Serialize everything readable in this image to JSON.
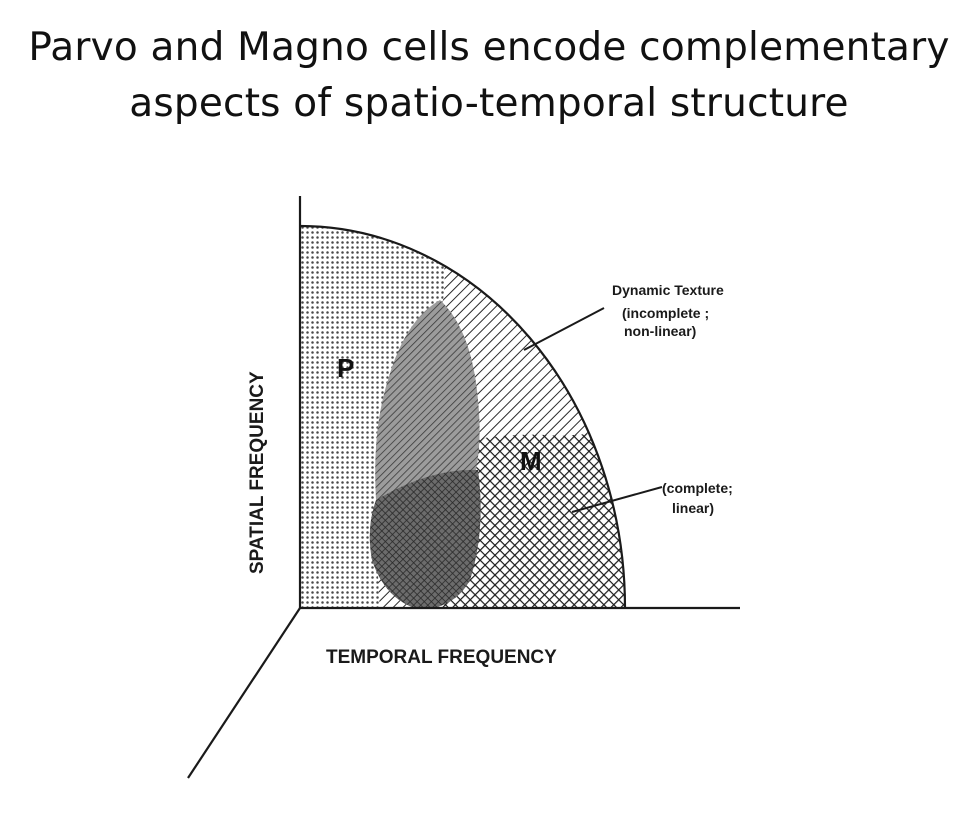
{
  "title": {
    "line1": "Parvo and Magno cells encode complementary",
    "line2": "aspects of spatio-temporal structure"
  },
  "axes": {
    "y_label": "SPATIAL FREQUENCY",
    "x_label": "TEMPORAL FREQUENCY"
  },
  "regions": {
    "parvo": "P",
    "magno": "M"
  },
  "annotations": {
    "dynamic_texture": {
      "line1": "Dynamic Texture",
      "line2": "(incomplete ;",
      "line3": "non-linear)"
    },
    "complete_linear": {
      "line1": "(complete;",
      "line2": "linear)"
    }
  },
  "colors": {
    "ink": "#1a1a1a",
    "parvo_fill": "#9a9a9a",
    "overlap_fill": "#6a6a6a"
  }
}
